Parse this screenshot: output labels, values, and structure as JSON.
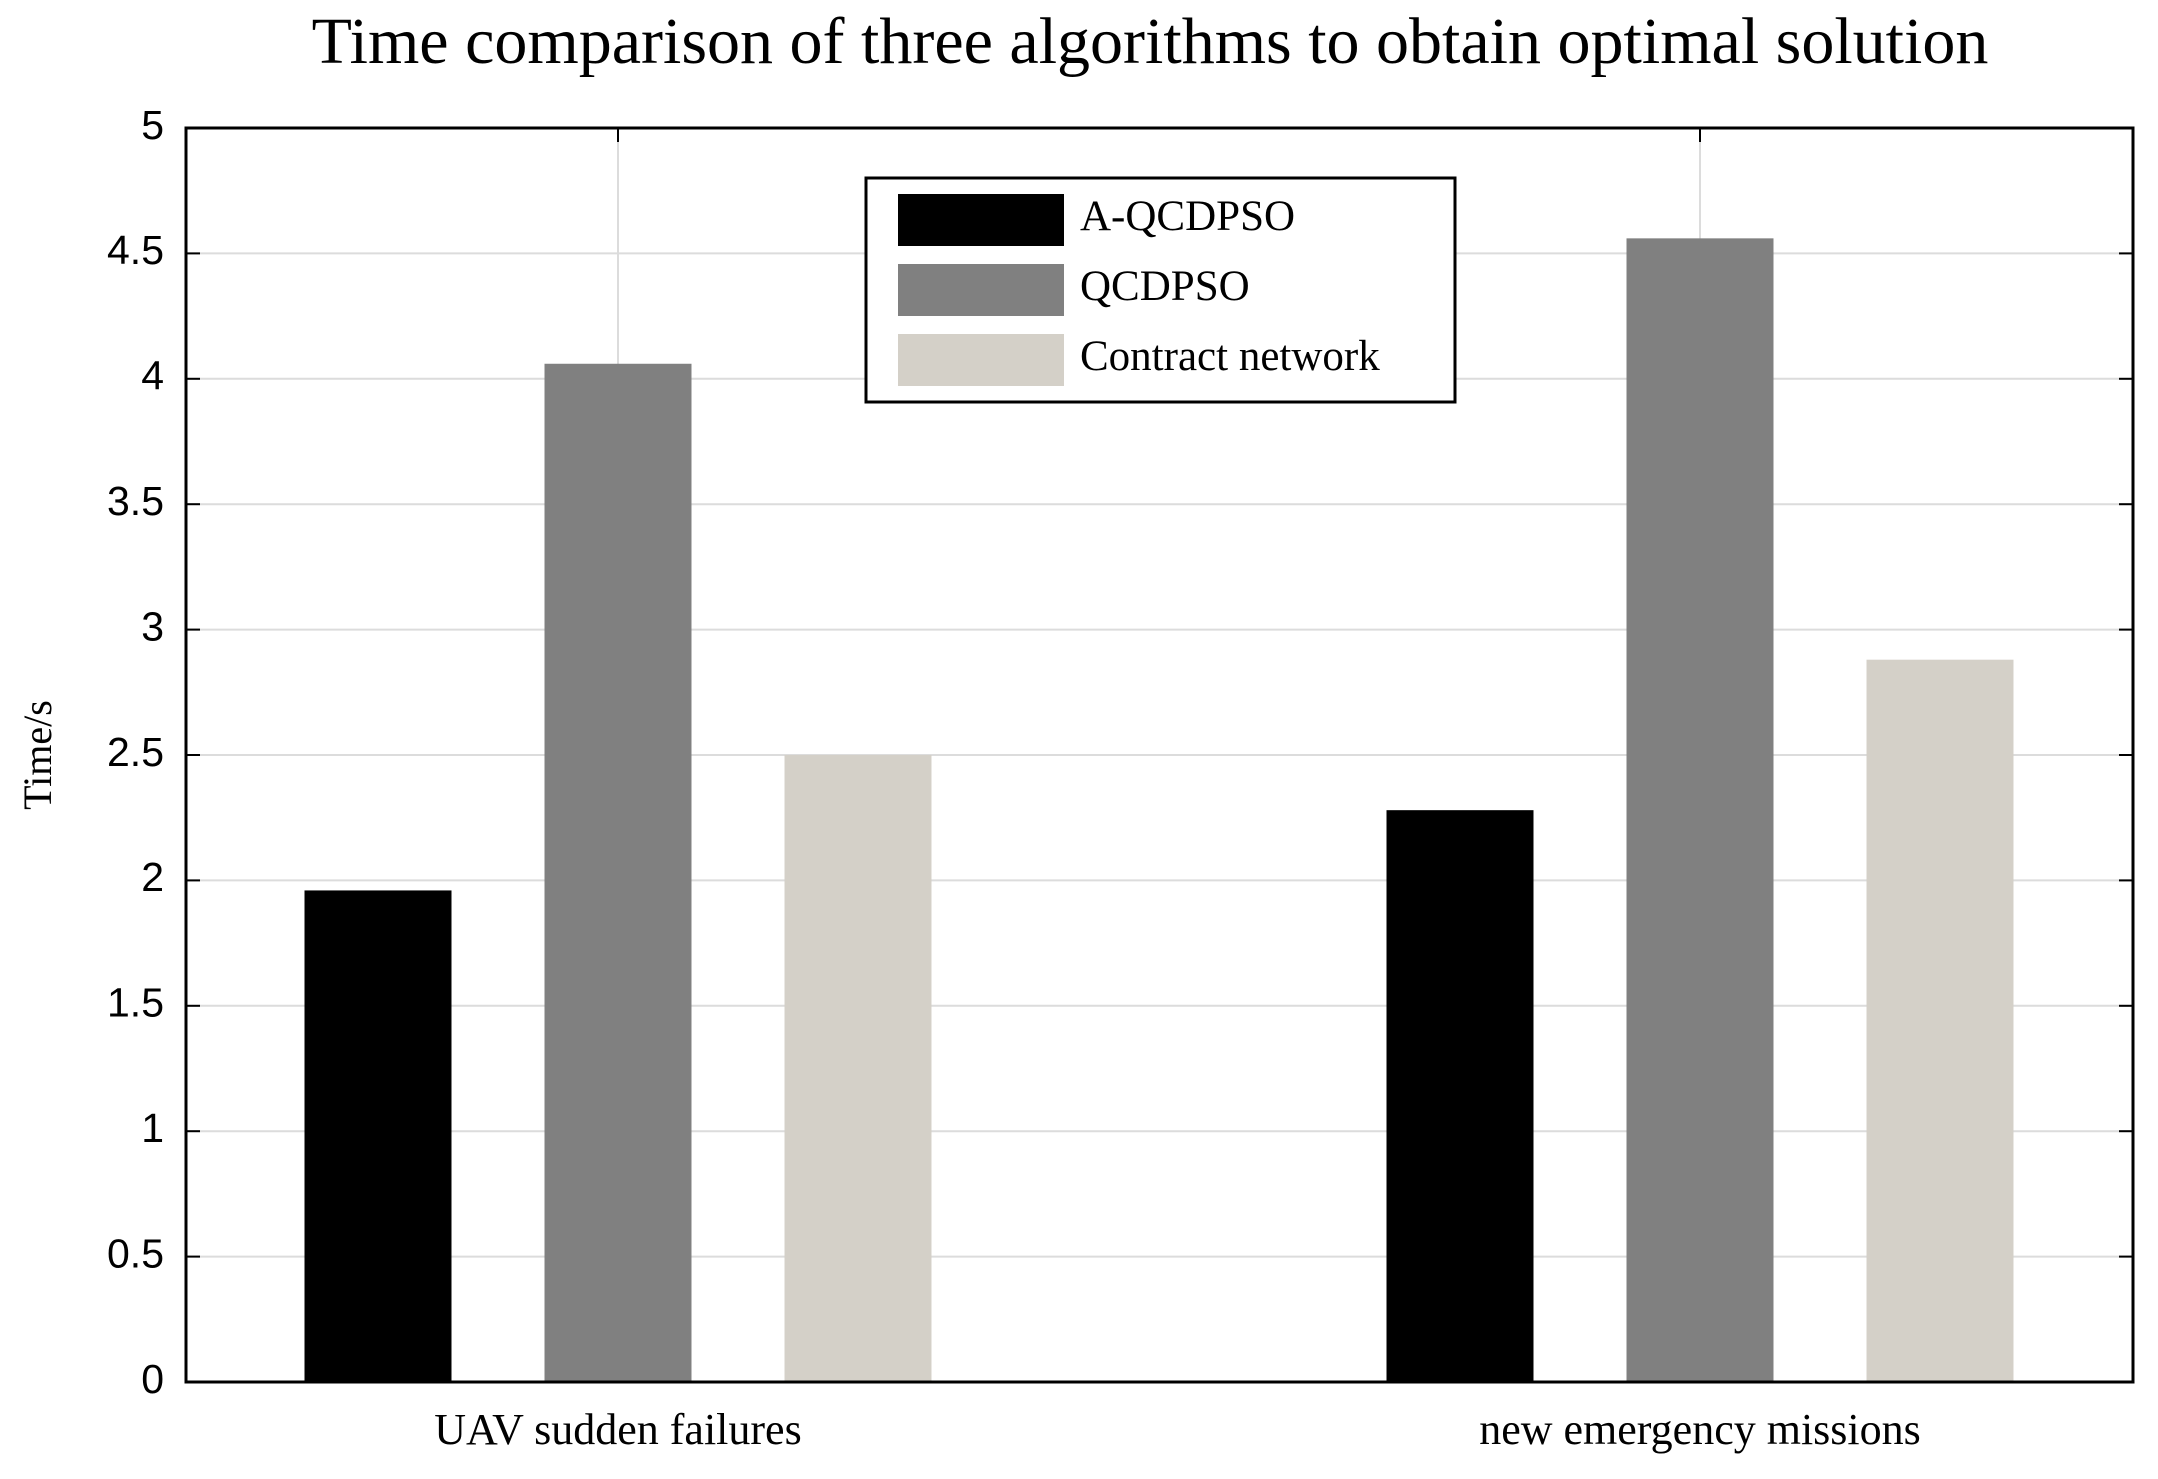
{
  "chart_data": {
    "type": "bar",
    "title": "Time comparison of three algorithms to obtain optimal solution",
    "y_label": "Time/s",
    "categories": [
      "UAV sudden failures",
      "new emergency missions"
    ],
    "series": [
      {
        "name": "A-QCDPSO",
        "color": "#000000",
        "values": [
          1.96,
          2.28
        ]
      },
      {
        "name": "QCDPSO",
        "color": "#808080",
        "values": [
          4.06,
          4.56
        ]
      },
      {
        "name": "Contract network",
        "color": "#d4d0c8",
        "values": [
          2.5,
          2.88
        ]
      }
    ],
    "ylim": [
      0,
      5
    ],
    "yticks": [
      0,
      0.5,
      1,
      1.5,
      2,
      2.5,
      3,
      3.5,
      4,
      4.5,
      5
    ],
    "grid": true,
    "legend": "top"
  }
}
